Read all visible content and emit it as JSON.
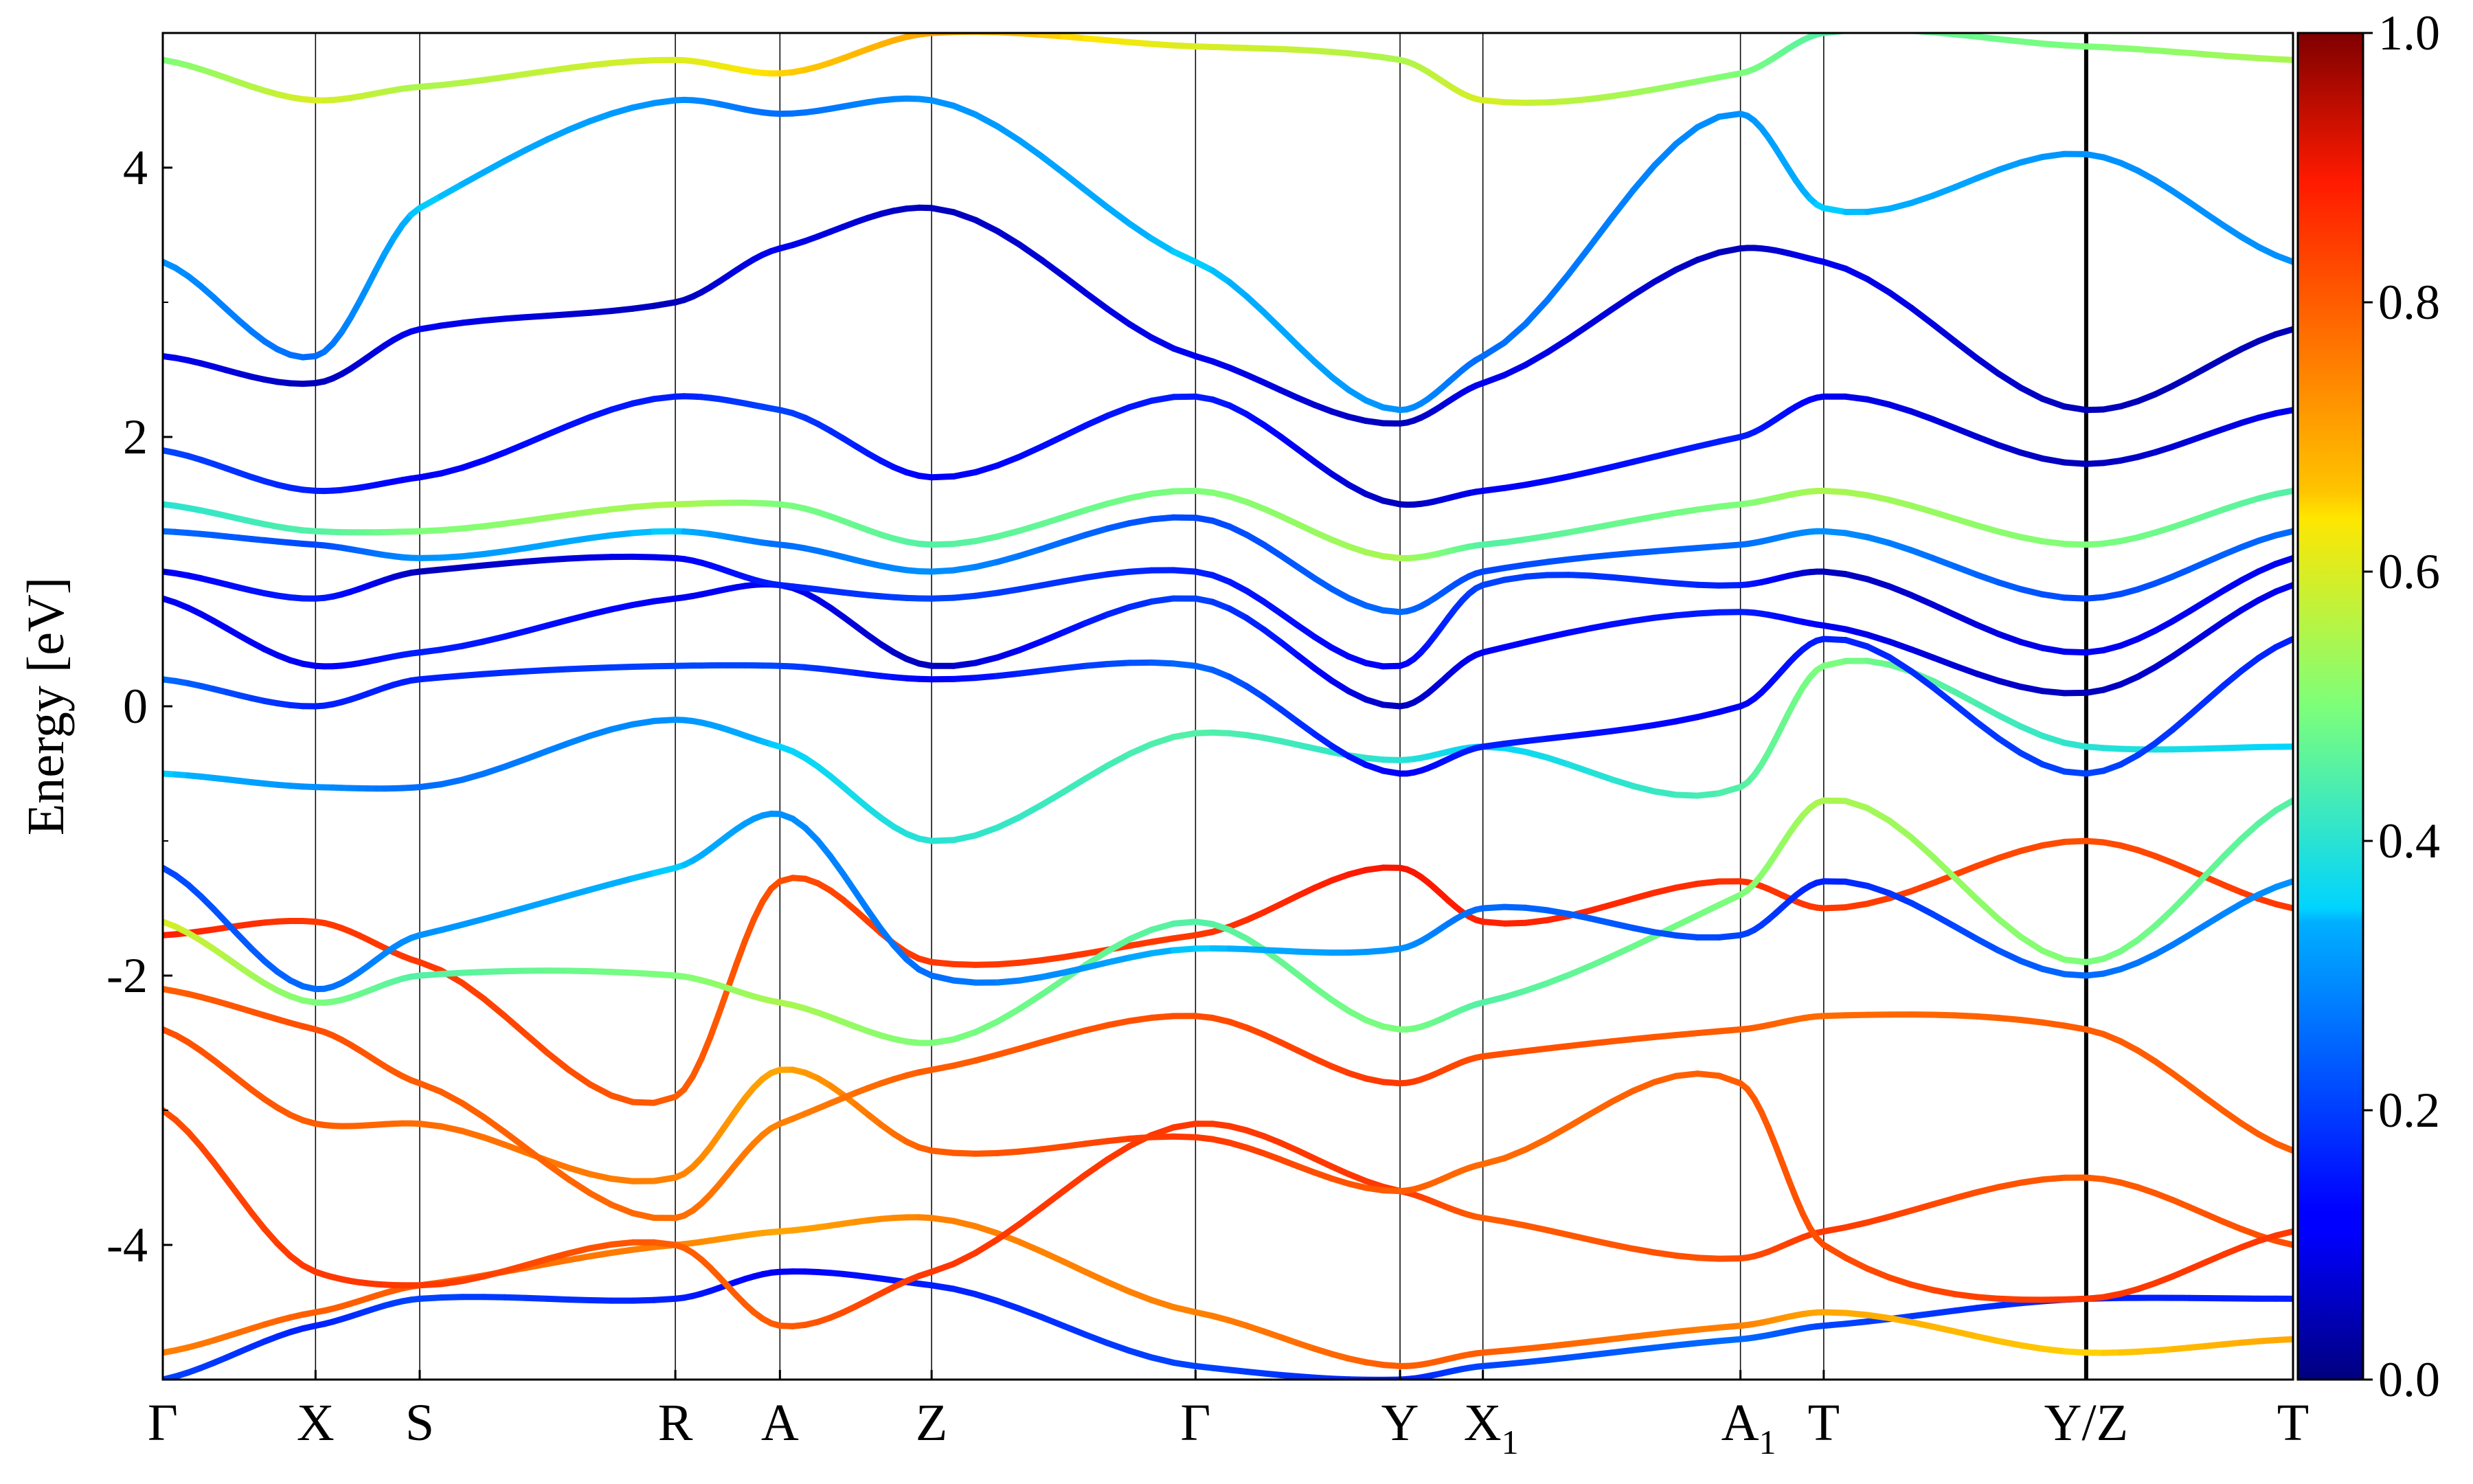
{
  "chart_data": {
    "type": "line",
    "ylabel": "Energy [eV]",
    "ylim": [
      -5,
      5
    ],
    "y_ticks": [
      {
        "value": 4,
        "label": "4"
      },
      {
        "value": 2,
        "label": "2"
      },
      {
        "value": 0,
        "label": "0"
      },
      {
        "value": -2,
        "label": "-2"
      },
      {
        "value": -4,
        "label": "-4"
      }
    ],
    "k_points": [
      {
        "label": "Γ",
        "sub": "",
        "k": 0.0
      },
      {
        "label": "X",
        "sub": "",
        "k": 0.0717
      },
      {
        "label": "S",
        "sub": "",
        "k": 0.1206
      },
      {
        "label": "R",
        "sub": "",
        "k": 0.2406
      },
      {
        "label": "A",
        "sub": "",
        "k": 0.2897
      },
      {
        "label": "Z",
        "sub": "",
        "k": 0.3609
      },
      {
        "label": "Γ",
        "sub": "",
        "k": 0.4848
      },
      {
        "label": "Y",
        "sub": "",
        "k": 0.5808
      },
      {
        "label": "X",
        "sub": "1",
        "k": 0.6197
      },
      {
        "label": "A",
        "sub": "1",
        "k": 0.7406
      },
      {
        "label": "T",
        "sub": "",
        "k": 0.7797
      },
      {
        "label": "Y/Z",
        "sub": "",
        "k": 0.9029
      },
      {
        "label": "T",
        "sub": "",
        "k": 1.0
      }
    ],
    "discontinuity_k": 0.9029,
    "colorbar": {
      "colormap": "jet",
      "range": [
        0.0,
        1.0
      ],
      "ticks": [
        {
          "value": 1.0,
          "label": "1.0"
        },
        {
          "value": 0.8,
          "label": "0.8"
        },
        {
          "value": 0.6,
          "label": "0.6"
        },
        {
          "value": 0.4,
          "label": "0.4"
        },
        {
          "value": 0.2,
          "label": "0.2"
        },
        {
          "value": 0.0,
          "label": "0.0"
        }
      ]
    },
    "bands": [
      {
        "w": [
          0.2,
          0.15,
          0.2,
          0.15,
          0.1,
          0.15,
          0.2,
          0.15,
          0.2,
          0.25,
          0.2,
          0.15,
          0.15
        ],
        "e": [
          -5.0,
          -4.6,
          -4.4,
          -4.4,
          -4.2,
          -4.3,
          -4.9,
          -5.0,
          -4.9,
          -4.7,
          -4.6,
          -4.4,
          -4.4
        ]
      },
      {
        "w": [
          0.75,
          0.8,
          0.8,
          0.75,
          0.7,
          0.75,
          0.75,
          0.8,
          0.8,
          0.75,
          0.7,
          0.65,
          0.7
        ],
        "e": [
          -4.8,
          -4.5,
          -4.3,
          -4.0,
          -3.9,
          -3.8,
          -4.5,
          -4.9,
          -4.8,
          -4.6,
          -4.5,
          -4.8,
          -4.7
        ]
      },
      {
        "w": [
          0.82,
          0.85,
          0.85,
          0.8,
          0.8,
          0.85,
          0.85,
          0.85,
          0.8,
          0.82,
          0.85,
          0.8,
          0.82
        ],
        "e": [
          -3.0,
          -4.2,
          -4.3,
          -4.0,
          -4.6,
          -4.2,
          -3.1,
          -3.6,
          -3.8,
          -4.1,
          -3.9,
          -3.5,
          -4.0
        ]
      },
      {
        "w": [
          0.82,
          0.8,
          0.78,
          0.75,
          0.7,
          0.8,
          0.85,
          0.8,
          0.78,
          0.8,
          0.82,
          0.85,
          0.85
        ],
        "e": [
          -2.4,
          -3.1,
          -3.1,
          -3.5,
          -2.7,
          -3.3,
          -3.2,
          -3.6,
          -3.4,
          -2.8,
          -4.0,
          -4.4,
          -3.9
        ]
      },
      {
        "w": [
          0.8,
          0.82,
          0.8,
          0.78,
          0.75,
          0.8,
          0.82,
          0.85,
          0.82,
          0.8,
          0.78,
          0.8,
          0.8
        ],
        "e": [
          -2.1,
          -2.4,
          -2.8,
          -3.8,
          -3.1,
          -2.7,
          -2.3,
          -2.8,
          -2.6,
          -2.4,
          -2.3,
          -2.4,
          -3.3
        ]
      },
      {
        "w": [
          0.88,
          0.85,
          0.85,
          0.8,
          0.82,
          0.85,
          0.85,
          0.9,
          0.88,
          0.86,
          0.85,
          0.82,
          0.85
        ],
        "e": [
          -1.7,
          -1.6,
          -1.9,
          -2.9,
          -1.3,
          -1.9,
          -1.7,
          -1.2,
          -1.6,
          -1.3,
          -1.5,
          -1.0,
          -1.5
        ]
      },
      {
        "w": [
          0.6,
          0.5,
          0.45,
          0.5,
          0.55,
          0.5,
          0.45,
          0.5,
          0.45,
          0.5,
          0.55,
          0.5,
          0.45
        ],
        "e": [
          -1.6,
          -2.2,
          -2.0,
          -2.0,
          -2.2,
          -2.5,
          -1.6,
          -2.4,
          -2.2,
          -1.4,
          -0.7,
          -1.9,
          -0.7
        ]
      },
      {
        "w": [
          0.2,
          0.25,
          0.3,
          0.35,
          0.3,
          0.25,
          0.35,
          0.3,
          0.25,
          0.2,
          0.15,
          0.25,
          0.3
        ],
        "e": [
          -1.2,
          -2.1,
          -1.7,
          -1.2,
          -0.8,
          -2.0,
          -1.8,
          -1.8,
          -1.5,
          -1.7,
          -1.3,
          -2.0,
          -1.3
        ]
      },
      {
        "w": [
          0.35,
          0.3,
          0.25,
          0.3,
          0.35,
          0.4,
          0.45,
          0.4,
          0.35,
          0.45,
          0.5,
          0.4,
          0.35
        ],
        "e": [
          -0.5,
          -0.6,
          -0.6,
          -0.1,
          -0.3,
          -1.0,
          -0.2,
          -0.4,
          -0.3,
          -0.6,
          0.3,
          -0.3,
          -0.3
        ]
      },
      {
        "w": [
          0.25,
          0.15,
          0.15,
          0.2,
          0.2,
          0.1,
          0.25,
          0.1,
          0.15,
          0.1,
          0.15,
          0.2,
          0.15
        ],
        "e": [
          0.2,
          0.0,
          0.2,
          0.3,
          0.3,
          0.2,
          0.3,
          -0.5,
          -0.3,
          0.0,
          0.5,
          -0.5,
          0.5
        ]
      },
      {
        "w": [
          0.1,
          0.1,
          0.15,
          0.1,
          0.1,
          0.05,
          0.2,
          0.05,
          0.1,
          0.15,
          0.1,
          0.05,
          0.1
        ],
        "e": [
          0.8,
          0.3,
          0.4,
          0.8,
          0.9,
          0.3,
          0.8,
          0.0,
          0.4,
          0.7,
          0.6,
          0.1,
          0.9
        ]
      },
      {
        "w": [
          0.1,
          0.15,
          0.05,
          0.1,
          0.15,
          0.2,
          0.15,
          0.1,
          0.2,
          0.15,
          0.05,
          0.1,
          0.1
        ],
        "e": [
          1.0,
          0.8,
          1.0,
          1.1,
          0.9,
          0.8,
          1.0,
          0.3,
          0.9,
          0.9,
          1.0,
          0.4,
          1.1
        ]
      },
      {
        "w": [
          0.25,
          0.2,
          0.3,
          0.35,
          0.25,
          0.3,
          0.2,
          0.25,
          0.2,
          0.25,
          0.3,
          0.2,
          0.25
        ],
        "e": [
          1.3,
          1.2,
          1.1,
          1.3,
          1.2,
          1.0,
          1.4,
          0.7,
          1.0,
          1.2,
          1.3,
          0.8,
          1.3
        ]
      },
      {
        "w": [
          0.4,
          0.45,
          0.5,
          0.55,
          0.5,
          0.45,
          0.5,
          0.55,
          0.45,
          0.5,
          0.55,
          0.5,
          0.45
        ],
        "e": [
          1.5,
          1.3,
          1.3,
          1.5,
          1.5,
          1.2,
          1.6,
          1.1,
          1.2,
          1.5,
          1.6,
          1.2,
          1.6
        ]
      },
      {
        "w": [
          0.2,
          0.15,
          0.1,
          0.15,
          0.2,
          0.1,
          0.15,
          0.05,
          0.1,
          0.15,
          0.1,
          0.05,
          0.1
        ],
        "e": [
          1.9,
          1.6,
          1.7,
          2.3,
          2.2,
          1.7,
          2.3,
          1.5,
          1.6,
          2.0,
          2.3,
          1.8,
          2.2
        ]
      },
      {
        "w": [
          0.1,
          0.05,
          0.1,
          0.05,
          0.1,
          0.05,
          0.1,
          0.05,
          0.1,
          0.05,
          0.1,
          0.05,
          0.05
        ],
        "e": [
          2.6,
          2.4,
          2.8,
          3.0,
          3.4,
          3.7,
          2.6,
          2.1,
          2.4,
          3.4,
          3.3,
          2.2,
          2.8
        ]
      },
      {
        "w": [
          0.3,
          0.25,
          0.35,
          0.3,
          0.25,
          0.3,
          0.35,
          0.3,
          0.25,
          0.3,
          0.35,
          0.3,
          0.3
        ],
        "e": [
          3.3,
          2.6,
          3.7,
          4.5,
          4.4,
          4.5,
          3.3,
          2.2,
          2.6,
          4.4,
          3.7,
          4.1,
          3.3
        ]
      },
      {
        "w": [
          0.5,
          0.6,
          0.55,
          0.6,
          0.65,
          0.7,
          0.6,
          0.55,
          0.6,
          0.5,
          0.45,
          0.5,
          0.55
        ],
        "e": [
          4.8,
          4.5,
          4.6,
          4.8,
          4.7,
          5.0,
          4.9,
          4.8,
          4.5,
          4.7,
          5.0,
          4.9,
          4.8
        ]
      }
    ]
  }
}
